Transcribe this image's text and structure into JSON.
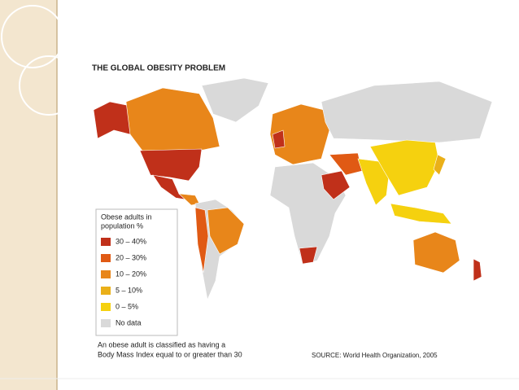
{
  "title": "THE GLOBAL OBESITY PROBLEM",
  "legend": {
    "title": [
      "Obese adults in",
      "population %"
    ],
    "items": [
      {
        "label": "30 – 40%",
        "color": "#c0301a"
      },
      {
        "label": "20 – 30%",
        "color": "#e05a14"
      },
      {
        "label": "10 – 20%",
        "color": "#e8861a"
      },
      {
        "label": "5 – 10%",
        "color": "#eab019"
      },
      {
        "label": "0 – 5%",
        "color": "#f5d10f"
      },
      {
        "label": "No data",
        "color": "#d9d9d9"
      }
    ]
  },
  "note": [
    "An obese adult is classified as having a",
    "Body Mass Index equal to or greater than 30"
  ],
  "source": "SOURCE: World Health Organization, 2005"
}
